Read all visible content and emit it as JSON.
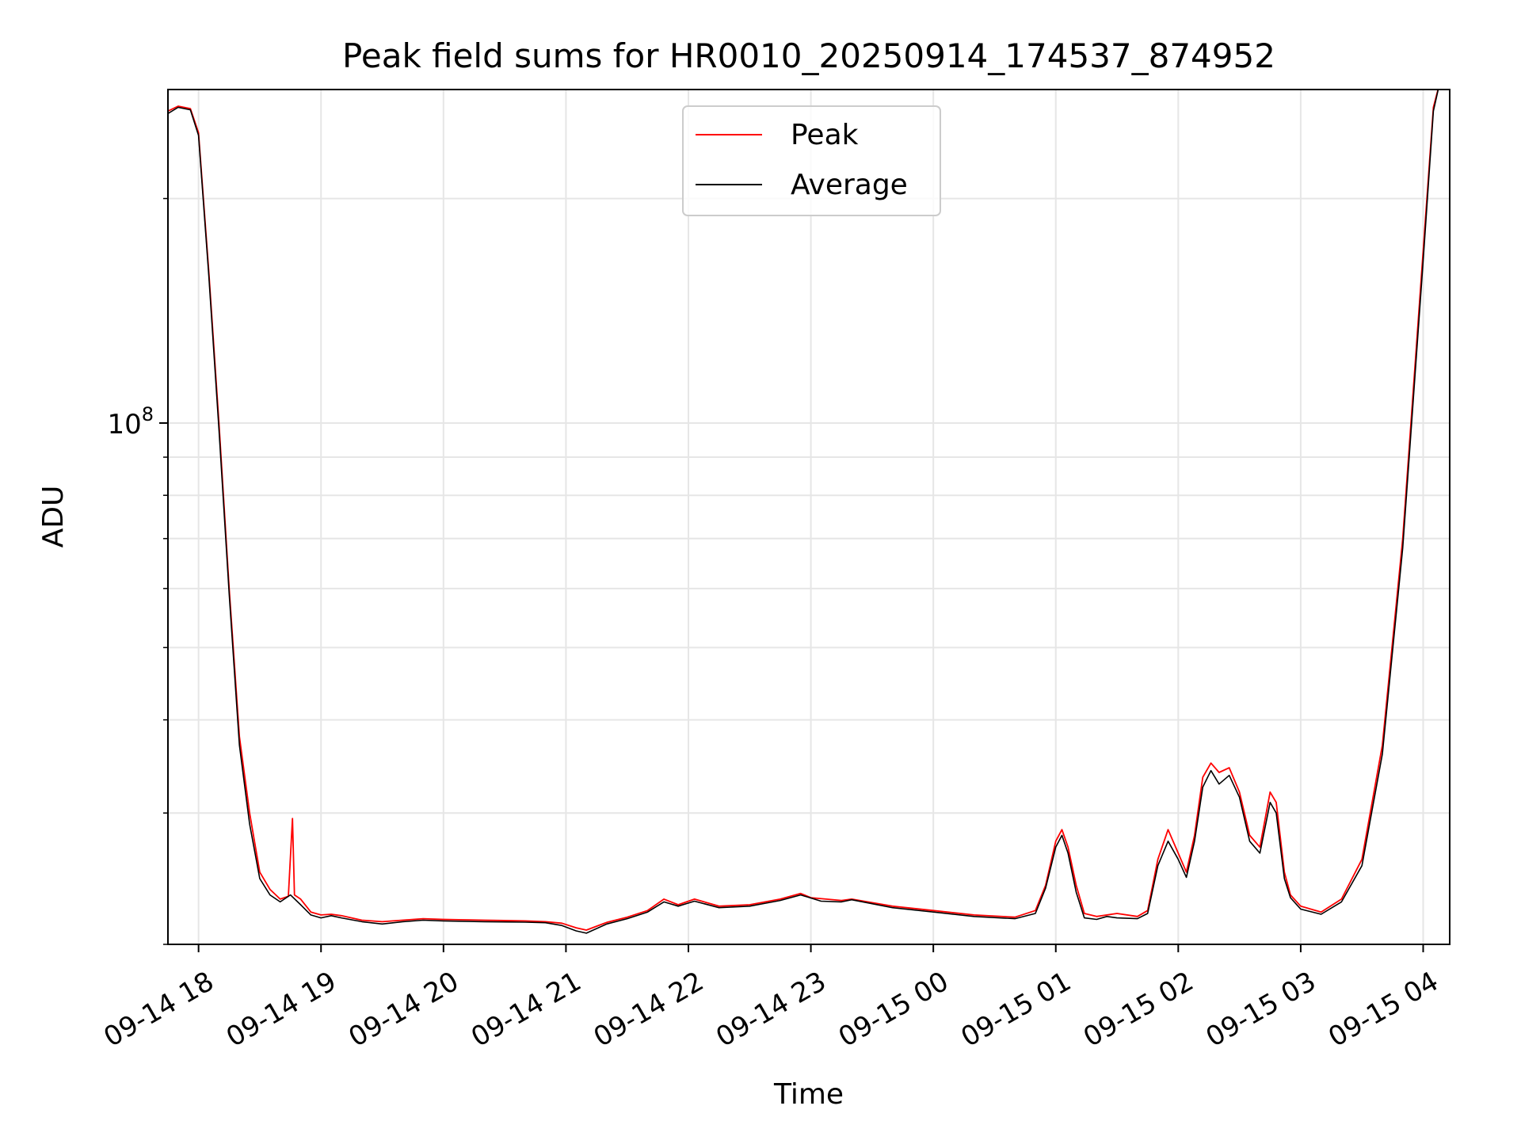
{
  "chart_data": {
    "type": "line",
    "title": "Peak field sums for HR0010_20250914_174537_874952",
    "xlabel": "Time",
    "ylabel": "ADU",
    "y_scale": "log",
    "x_range": [
      "2025-09-14 17:45",
      "2025-09-15 04:13"
    ],
    "ylim": [
      20000000,
      280000000
    ],
    "y_ticks": [
      {
        "value": 100000000,
        "base": "10",
        "exp": "8"
      }
    ],
    "y_minor_ticks": [
      20000000,
      30000000,
      40000000,
      50000000,
      60000000,
      70000000,
      80000000,
      90000000,
      200000000
    ],
    "x_ticks": [
      {
        "time": "2025-09-14 18:00",
        "label": "09-14 18"
      },
      {
        "time": "2025-09-14 19:00",
        "label": "09-14 19"
      },
      {
        "time": "2025-09-14 20:00",
        "label": "09-14 20"
      },
      {
        "time": "2025-09-14 21:00",
        "label": "09-14 21"
      },
      {
        "time": "2025-09-14 22:00",
        "label": "09-14 22"
      },
      {
        "time": "2025-09-14 23:00",
        "label": "09-14 23"
      },
      {
        "time": "2025-09-15 00:00",
        "label": "09-15 00"
      },
      {
        "time": "2025-09-15 01:00",
        "label": "09-15 01"
      },
      {
        "time": "2025-09-15 02:00",
        "label": "09-15 02"
      },
      {
        "time": "2025-09-15 03:00",
        "label": "09-15 03"
      },
      {
        "time": "2025-09-15 04:00",
        "label": "09-15 04"
      }
    ],
    "grid": true,
    "legend": "top-center",
    "series": [
      {
        "name": "Peak",
        "color": "#ff0000",
        "points": [
          [
            "2025-09-14 17:45",
            262000000
          ],
          [
            "2025-09-14 17:50",
            266000000
          ],
          [
            "2025-09-14 17:56",
            264000000
          ],
          [
            "2025-09-14 18:00",
            245000000
          ],
          [
            "2025-09-14 18:05",
            160000000
          ],
          [
            "2025-09-14 18:10",
            100000000
          ],
          [
            "2025-09-14 18:15",
            60000000
          ],
          [
            "2025-09-14 18:20",
            38000000
          ],
          [
            "2025-09-14 18:25",
            30000000
          ],
          [
            "2025-09-14 18:30",
            25000000
          ],
          [
            "2025-09-14 18:35",
            23700000
          ],
          [
            "2025-09-14 18:40",
            23000000
          ],
          [
            "2025-09-14 18:44",
            23200000
          ],
          [
            "2025-09-14 18:46",
            29500000
          ],
          [
            "2025-09-14 18:47",
            23300000
          ],
          [
            "2025-09-14 18:50",
            23000000
          ],
          [
            "2025-09-14 18:55",
            22100000
          ],
          [
            "2025-09-14 19:00",
            21900000
          ],
          [
            "2025-09-14 19:05",
            21950000
          ],
          [
            "2025-09-14 19:10",
            21850000
          ],
          [
            "2025-09-14 19:20",
            21550000
          ],
          [
            "2025-09-14 19:30",
            21450000
          ],
          [
            "2025-09-14 19:40",
            21550000
          ],
          [
            "2025-09-14 19:50",
            21650000
          ],
          [
            "2025-09-14 20:00",
            21600000
          ],
          [
            "2025-09-14 20:20",
            21550000
          ],
          [
            "2025-09-14 20:40",
            21500000
          ],
          [
            "2025-09-14 20:50",
            21450000
          ],
          [
            "2025-09-14 20:58",
            21350000
          ],
          [
            "2025-09-14 21:05",
            21050000
          ],
          [
            "2025-09-14 21:10",
            20900000
          ],
          [
            "2025-09-14 21:20",
            21400000
          ],
          [
            "2025-09-14 21:30",
            21750000
          ],
          [
            "2025-09-14 21:40",
            22200000
          ],
          [
            "2025-09-14 21:48",
            23000000
          ],
          [
            "2025-09-14 21:55",
            22600000
          ],
          [
            "2025-09-14 22:03",
            23000000
          ],
          [
            "2025-09-14 22:15",
            22500000
          ],
          [
            "2025-09-14 22:30",
            22600000
          ],
          [
            "2025-09-14 22:45",
            23000000
          ],
          [
            "2025-09-14 22:55",
            23400000
          ],
          [
            "2025-09-14 23:00",
            23100000
          ],
          [
            "2025-09-14 23:15",
            22900000
          ],
          [
            "2025-09-14 23:20",
            23000000
          ],
          [
            "2025-09-14 23:40",
            22500000
          ],
          [
            "2025-09-15 00:00",
            22200000
          ],
          [
            "2025-09-15 00:20",
            21900000
          ],
          [
            "2025-09-15 00:40",
            21750000
          ],
          [
            "2025-09-15 00:50",
            22200000
          ],
          [
            "2025-09-15 00:55",
            24000000
          ],
          [
            "2025-09-15 01:00",
            27500000
          ],
          [
            "2025-09-15 01:03",
            28500000
          ],
          [
            "2025-09-15 01:06",
            27000000
          ],
          [
            "2025-09-15 01:10",
            24000000
          ],
          [
            "2025-09-15 01:14",
            22000000
          ],
          [
            "2025-09-15 01:20",
            21800000
          ],
          [
            "2025-09-15 01:30",
            22000000
          ],
          [
            "2025-09-15 01:40",
            21800000
          ],
          [
            "2025-09-15 01:45",
            22200000
          ],
          [
            "2025-09-15 01:50",
            26000000
          ],
          [
            "2025-09-15 01:55",
            28500000
          ],
          [
            "2025-09-15 02:00",
            26500000
          ],
          [
            "2025-09-15 02:04",
            25000000
          ],
          [
            "2025-09-15 02:08",
            28000000
          ],
          [
            "2025-09-15 02:12",
            33500000
          ],
          [
            "2025-09-15 02:16",
            35000000
          ],
          [
            "2025-09-15 02:20",
            34000000
          ],
          [
            "2025-09-15 02:25",
            34500000
          ],
          [
            "2025-09-15 02:30",
            32000000
          ],
          [
            "2025-09-15 02:35",
            28000000
          ],
          [
            "2025-09-15 02:40",
            27000000
          ],
          [
            "2025-09-15 02:45",
            32000000
          ],
          [
            "2025-09-15 02:48",
            31000000
          ],
          [
            "2025-09-15 02:52",
            25000000
          ],
          [
            "2025-09-15 02:55",
            23300000
          ],
          [
            "2025-09-15 03:00",
            22500000
          ],
          [
            "2025-09-15 03:10",
            22100000
          ],
          [
            "2025-09-15 03:20",
            23000000
          ],
          [
            "2025-09-15 03:30",
            26000000
          ],
          [
            "2025-09-15 03:40",
            37000000
          ],
          [
            "2025-09-15 03:50",
            70000000
          ],
          [
            "2025-09-15 04:00",
            170000000
          ],
          [
            "2025-09-15 04:05",
            265000000
          ],
          [
            "2025-09-15 04:08",
            285000000
          ]
        ]
      },
      {
        "name": "Average",
        "color": "#000000",
        "points": [
          [
            "2025-09-14 17:45",
            260000000
          ],
          [
            "2025-09-14 17:50",
            265000000
          ],
          [
            "2025-09-14 17:56",
            263000000
          ],
          [
            "2025-09-14 18:00",
            243000000
          ],
          [
            "2025-09-14 18:05",
            158000000
          ],
          [
            "2025-09-14 18:10",
            98000000
          ],
          [
            "2025-09-14 18:15",
            59000000
          ],
          [
            "2025-09-14 18:20",
            37000000
          ],
          [
            "2025-09-14 18:25",
            29000000
          ],
          [
            "2025-09-14 18:30",
            24500000
          ],
          [
            "2025-09-14 18:35",
            23300000
          ],
          [
            "2025-09-14 18:40",
            22800000
          ],
          [
            "2025-09-14 18:45",
            23300000
          ],
          [
            "2025-09-14 18:50",
            22600000
          ],
          [
            "2025-09-14 18:55",
            21900000
          ],
          [
            "2025-09-14 19:00",
            21700000
          ],
          [
            "2025-09-14 19:05",
            21850000
          ],
          [
            "2025-09-14 19:10",
            21700000
          ],
          [
            "2025-09-14 19:20",
            21450000
          ],
          [
            "2025-09-14 19:30",
            21300000
          ],
          [
            "2025-09-14 19:40",
            21450000
          ],
          [
            "2025-09-14 19:50",
            21550000
          ],
          [
            "2025-09-14 20:00",
            21500000
          ],
          [
            "2025-09-14 20:20",
            21450000
          ],
          [
            "2025-09-14 20:40",
            21420000
          ],
          [
            "2025-09-14 20:50",
            21380000
          ],
          [
            "2025-09-14 20:58",
            21200000
          ],
          [
            "2025-09-14 21:05",
            20850000
          ],
          [
            "2025-09-14 21:10",
            20700000
          ],
          [
            "2025-09-14 21:20",
            21300000
          ],
          [
            "2025-09-14 21:30",
            21650000
          ],
          [
            "2025-09-14 21:40",
            22100000
          ],
          [
            "2025-09-14 21:48",
            22800000
          ],
          [
            "2025-09-14 21:55",
            22500000
          ],
          [
            "2025-09-14 22:03",
            22850000
          ],
          [
            "2025-09-14 22:15",
            22400000
          ],
          [
            "2025-09-14 22:30",
            22500000
          ],
          [
            "2025-09-14 22:45",
            22900000
          ],
          [
            "2025-09-14 22:55",
            23300000
          ],
          [
            "2025-09-14 23:05",
            22850000
          ],
          [
            "2025-09-14 23:15",
            22800000
          ],
          [
            "2025-09-14 23:20",
            22950000
          ],
          [
            "2025-09-14 23:40",
            22400000
          ],
          [
            "2025-09-15 00:00",
            22100000
          ],
          [
            "2025-09-15 00:20",
            21800000
          ],
          [
            "2025-09-15 00:40",
            21650000
          ],
          [
            "2025-09-15 00:50",
            22000000
          ],
          [
            "2025-09-15 00:55",
            23800000
          ],
          [
            "2025-09-15 01:00",
            27000000
          ],
          [
            "2025-09-15 01:03",
            28000000
          ],
          [
            "2025-09-15 01:06",
            26500000
          ],
          [
            "2025-09-15 01:10",
            23500000
          ],
          [
            "2025-09-15 01:14",
            21700000
          ],
          [
            "2025-09-15 01:20",
            21600000
          ],
          [
            "2025-09-15 01:25",
            21800000
          ],
          [
            "2025-09-15 01:30",
            21700000
          ],
          [
            "2025-09-15 01:40",
            21650000
          ],
          [
            "2025-09-15 01:45",
            22000000
          ],
          [
            "2025-09-15 01:50",
            25500000
          ],
          [
            "2025-09-15 01:55",
            27500000
          ],
          [
            "2025-09-15 02:00",
            26000000
          ],
          [
            "2025-09-15 02:04",
            24600000
          ],
          [
            "2025-09-15 02:08",
            27500000
          ],
          [
            "2025-09-15 02:12",
            32500000
          ],
          [
            "2025-09-15 02:16",
            34200000
          ],
          [
            "2025-09-15 02:20",
            32800000
          ],
          [
            "2025-09-15 02:25",
            33700000
          ],
          [
            "2025-09-15 02:30",
            31500000
          ],
          [
            "2025-09-15 02:35",
            27500000
          ],
          [
            "2025-09-15 02:40",
            26500000
          ],
          [
            "2025-09-15 02:45",
            31000000
          ],
          [
            "2025-09-15 02:48",
            30000000
          ],
          [
            "2025-09-15 02:52",
            24500000
          ],
          [
            "2025-09-15 02:55",
            23100000
          ],
          [
            "2025-09-15 03:00",
            22300000
          ],
          [
            "2025-09-15 03:10",
            21950000
          ],
          [
            "2025-09-15 03:20",
            22800000
          ],
          [
            "2025-09-15 03:30",
            25500000
          ],
          [
            "2025-09-15 03:40",
            36000000
          ],
          [
            "2025-09-15 03:50",
            68000000
          ],
          [
            "2025-09-15 04:00",
            165000000
          ],
          [
            "2025-09-15 04:05",
            262000000
          ],
          [
            "2025-09-15 04:08",
            285000000
          ]
        ]
      }
    ]
  }
}
